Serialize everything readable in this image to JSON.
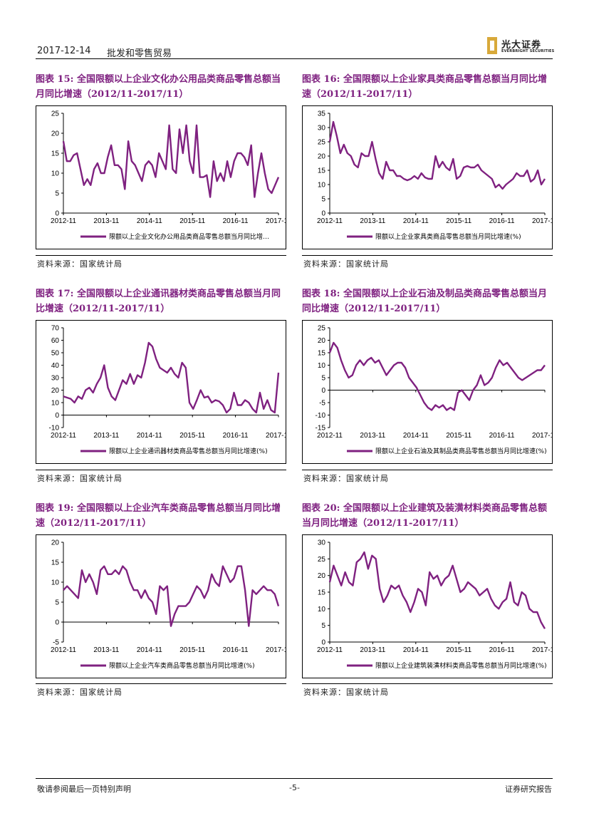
{
  "header": {
    "date": "2017-12-14",
    "section": "批发和零售贸易",
    "logo_cn": "光大证券",
    "logo_en": "EVERBRIGHT SECURITIES"
  },
  "footer": {
    "left": "敬请参阅最后一页特别声明",
    "page": "-5-",
    "right": "证券研究报告"
  },
  "colors": {
    "series": "#7f2180",
    "title": "#7f2180"
  },
  "chart_data": [
    {
      "id": "c15",
      "type": "line",
      "title_prefix": "图表 15: ",
      "title": "全国限额以上企业文化办公用品类商品零售总额当月同比增速（2012/11-2017/11）",
      "source": "资料来源：国家统计局",
      "ylim": [
        0,
        25
      ],
      "yticks": [
        0,
        5,
        10,
        15,
        20,
        25
      ],
      "xticks": [
        "2012-11",
        "2013-11",
        "2014-11",
        "2015-11",
        "2016-11",
        "2017-11"
      ],
      "series": [
        {
          "name": "限额以上企业文化办公用品类商品零售总额当月同比增…",
          "values": [
            18,
            13,
            13,
            14.5,
            15,
            11,
            7,
            8.5,
            7,
            11,
            12.5,
            10,
            10,
            14,
            17,
            12,
            12,
            11,
            6,
            18,
            13,
            12,
            10,
            8,
            12,
            13,
            12,
            9,
            15,
            13,
            11,
            22,
            11,
            10,
            21,
            15,
            22,
            13,
            10,
            22,
            9,
            9,
            9.5,
            4,
            13,
            8,
            10,
            8,
            13,
            9,
            13,
            15,
            15,
            14,
            12,
            17,
            4,
            10,
            15,
            10,
            6,
            5,
            7,
            9
          ]
        }
      ]
    },
    {
      "id": "c16",
      "type": "line",
      "title_prefix": "图表 16: ",
      "title": "全国限额以上企业家具类商品零售总额当月同比增速（2012/11-2017/11）",
      "source": "资料来源：国家统计局",
      "ylim": [
        0,
        35
      ],
      "yticks": [
        0,
        5,
        10,
        15,
        20,
        25,
        30,
        35
      ],
      "xticks": [
        "2012-11",
        "2013-11",
        "2014-11",
        "2015-11",
        "2016-11",
        "2017-11"
      ],
      "series": [
        {
          "name": "限额以上企业家具类商品零售总额当月同比增速(%)",
          "values": [
            25,
            32,
            27,
            21,
            24,
            21,
            20,
            17,
            16,
            21,
            20,
            20,
            25,
            19,
            14,
            12,
            18,
            15,
            15,
            13,
            13,
            12,
            11.5,
            12,
            13,
            12,
            14,
            12.5,
            12,
            12,
            20,
            16,
            18,
            16,
            15,
            19,
            12,
            13,
            16,
            16.5,
            16,
            16,
            17,
            15,
            14,
            13,
            12,
            9,
            10,
            8.5,
            10,
            11,
            12,
            14,
            13,
            13,
            15,
            11,
            12,
            15,
            10,
            12
          ]
        }
      ]
    },
    {
      "id": "c17",
      "type": "line",
      "title_prefix": "图表 17: ",
      "title": "全国限额以上企业通讯器材类商品零售总额当月同比增速（2012/11-2017/11）",
      "source": "资料来源：国家统计局",
      "ylim": [
        -10,
        70
      ],
      "yticks": [
        -10,
        0,
        10,
        20,
        30,
        40,
        50,
        60,
        70
      ],
      "xticks": [
        "2012-11",
        "2013-11",
        "2014-11",
        "2015-11",
        "2016-11",
        "2017-11"
      ],
      "series": [
        {
          "name": "限额以上企业通讯器材类商品零售总额当月同比增速(%)",
          "values": [
            15,
            14,
            13,
            10,
            15,
            13,
            20,
            22,
            18,
            25,
            30,
            40,
            22,
            15,
            12,
            20,
            28,
            25,
            33,
            25,
            32,
            30,
            42,
            58,
            55,
            45,
            38,
            36,
            34,
            38,
            33,
            30,
            42,
            38,
            10,
            5,
            12,
            20,
            14,
            15,
            10,
            12,
            11,
            8,
            2,
            5,
            18,
            8,
            8,
            12,
            10,
            5,
            2,
            18,
            5,
            12,
            4,
            2,
            34
          ]
        }
      ]
    },
    {
      "id": "c18",
      "type": "line",
      "title_prefix": "图表 18: ",
      "title": "全国限额以上企业石油及制品类商品零售总额当月同比增速（2012/11-2017/11）",
      "source": "资料来源：国家统计局",
      "ylim": [
        -15,
        25
      ],
      "yticks": [
        -15,
        -10,
        -5,
        0,
        5,
        10,
        15,
        20,
        25
      ],
      "xticks": [
        "2012-11",
        "2013-11",
        "2014-11",
        "2015-11",
        "2016-11",
        "2017-11"
      ],
      "series": [
        {
          "name": "限额以上企业石油及其制品类商品零售总额当月同比增速(%)",
          "values": [
            15,
            19,
            17,
            12,
            8,
            5,
            6,
            10,
            12,
            10,
            12,
            13,
            11,
            12,
            9,
            6,
            8,
            10,
            11,
            11,
            9,
            5,
            3,
            1,
            -2,
            -5,
            -7,
            -8,
            -6,
            -7,
            -6,
            -8,
            -7,
            -8,
            -1,
            0,
            -2,
            -4,
            0,
            2,
            6,
            2,
            3,
            5,
            9,
            12,
            10,
            11,
            9,
            7,
            5,
            4,
            5,
            6,
            7,
            8,
            8,
            10
          ]
        }
      ]
    },
    {
      "id": "c19",
      "type": "line",
      "title_prefix": "图表 19: ",
      "title": "全国限额以上企业汽车类商品零售总额当月同比增速（2012/11-2017/11）",
      "source": "资料来源：国家统计局",
      "ylim": [
        -5,
        20
      ],
      "yticks": [
        -5,
        0,
        5,
        10,
        15,
        20
      ],
      "xticks": [
        "2012-11",
        "2013-11",
        "2014-11",
        "2015-11",
        "2016-11",
        "2017-11"
      ],
      "series": [
        {
          "name": "限额以上企业汽车类商品零售总额当月同比增速(%)",
          "values": [
            8,
            9,
            8,
            7,
            6,
            13,
            10,
            12,
            10,
            7,
            13,
            14,
            12,
            12,
            13,
            12,
            14,
            13,
            10,
            8,
            8,
            6,
            8,
            6,
            5,
            2,
            9,
            8,
            9,
            -1,
            2,
            4,
            4,
            4,
            5,
            7,
            9,
            8,
            6,
            8,
            12,
            10,
            9,
            14,
            12,
            10,
            11,
            14,
            14,
            8,
            -1,
            8,
            7,
            8,
            9,
            8,
            8,
            7,
            4
          ]
        }
      ]
    },
    {
      "id": "c20",
      "type": "line",
      "title_prefix": "图表 20: ",
      "title": "全国限额以上企业建筑及装潢材料类商品零售总额当月同比增速（2012/11-2017/11）",
      "source": "资料来源：国家统计局",
      "ylim": [
        0,
        30
      ],
      "yticks": [
        0,
        5,
        10,
        15,
        20,
        25,
        30
      ],
      "xticks": [
        "2012-11",
        "2013-11",
        "2014-11",
        "2015-11",
        "2016-11",
        "2017-11"
      ],
      "series": [
        {
          "name": "限额以上企业建筑装潢材料类商品零售总额当月同比增速(%)",
          "values": [
            18,
            23,
            20,
            17,
            21,
            18,
            17,
            24,
            25,
            27,
            22,
            26,
            25,
            16,
            12,
            14,
            17,
            16,
            17,
            14,
            12,
            9,
            12,
            16,
            15,
            11,
            21,
            19,
            20,
            17,
            19,
            20,
            23,
            19,
            15,
            16,
            18,
            17,
            16,
            14,
            15,
            16,
            13,
            11,
            10,
            12,
            13,
            18,
            12,
            11,
            15,
            14,
            10,
            9,
            9,
            6,
            4
          ]
        }
      ]
    }
  ]
}
